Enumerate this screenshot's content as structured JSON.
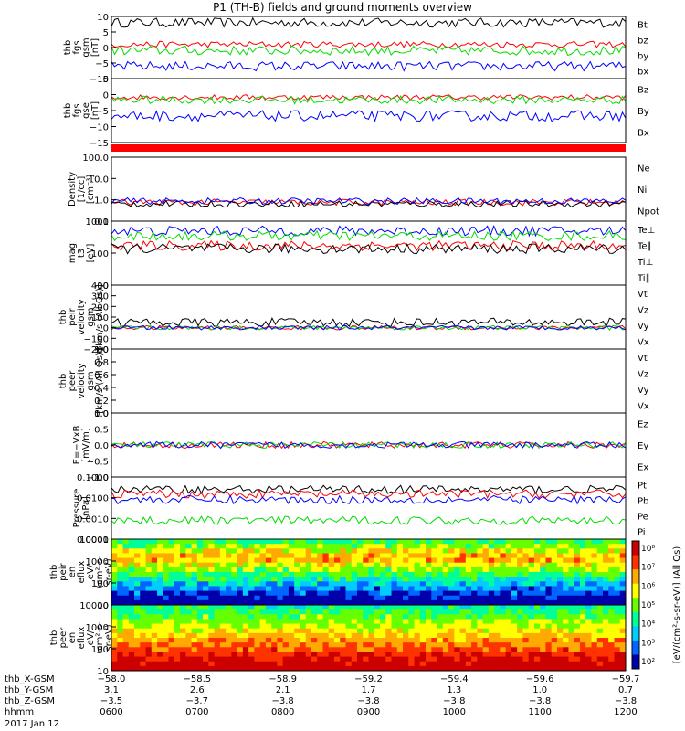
{
  "title": "P1 (TH-B) fields and ground moments overview",
  "date_label": "2017 Jan 12",
  "colors": {
    "black": "#000000",
    "red": "#ff0000",
    "green": "#00dd00",
    "blue": "#0000ff"
  },
  "chart_data": [
    {
      "type": "line",
      "id": "fgs",
      "ylabel": [
        "thb",
        "fgs",
        "gsm",
        "[nT]"
      ],
      "ylim": [
        -10,
        10
      ],
      "ticks": [
        "10",
        "5",
        "0",
        "−5",
        "−10"
      ],
      "series": [
        {
          "name": "Bt",
          "color": "black",
          "base": 8,
          "noise": 1.5
        },
        {
          "name": "bz",
          "color": "red",
          "base": 1,
          "noise": 1
        },
        {
          "name": "by",
          "color": "green",
          "base": -1,
          "noise": 1.5
        },
        {
          "name": "bx",
          "color": "blue",
          "base": -6,
          "noise": 1.5
        }
      ]
    },
    {
      "type": "line",
      "id": "fgs_gse",
      "ylabel": [
        "thb",
        "fgs",
        "gse",
        "[nT]"
      ],
      "ylim": [
        -17,
        7
      ],
      "ticks": [
        "5",
        "0",
        "−5",
        "−10",
        "−15"
      ],
      "series": [
        {
          "name": "Bz",
          "color": "red",
          "base": 0,
          "noise": 1
        },
        {
          "name": "By",
          "color": "green",
          "base": -1,
          "noise": 1.5
        },
        {
          "name": "Bx",
          "color": "blue",
          "base": -7,
          "noise": 2
        }
      ]
    },
    {
      "type": "line",
      "id": "density",
      "ylabel": [
        "Density",
        "[1/cc]",
        "[cm⁻³]"
      ],
      "ylim": [
        0.01,
        100
      ],
      "scale": "log",
      "ticks": [
        "100.0",
        "10.0",
        "1.0",
        "0.1"
      ],
      "series": [
        {
          "name": "Ne",
          "color": "red",
          "base": 0.15
        },
        {
          "name": "Ni",
          "color": "black",
          "base": 0.12
        },
        {
          "name": "Npot",
          "color": "blue",
          "base": 0.18
        }
      ]
    },
    {
      "type": "line",
      "id": "temperature",
      "ylabel": [
        "mag",
        "t3",
        "[eV]"
      ],
      "ylim": [
        5,
        2000
      ],
      "scale": "log",
      "ticks": [
        "1000",
        "100",
        "10"
      ],
      "series": [
        {
          "name": "Te⊥",
          "color": "red",
          "base": 200
        },
        {
          "name": "Te∥",
          "color": "black",
          "base": 150
        },
        {
          "name": "Ti⊥",
          "color": "blue",
          "base": 800
        },
        {
          "name": "Ti∥",
          "color": "green",
          "base": 500
        }
      ]
    },
    {
      "type": "line",
      "id": "peir_velocity",
      "ylabel": [
        "thb",
        "peir",
        "velocity",
        "gsm",
        "[km/s (All Qs)]"
      ],
      "ylim": [
        -200,
        400
      ],
      "ticks": [
        "400",
        "300",
        "200",
        "100",
        "0",
        "−100",
        "−200"
      ],
      "series": [
        {
          "name": "Vt",
          "color": "black",
          "base": 50,
          "noise": 40
        },
        {
          "name": "Vz",
          "color": "red",
          "base": 0,
          "noise": 20
        },
        {
          "name": "Vy",
          "color": "green",
          "base": 0,
          "noise": 20
        },
        {
          "name": "Vx",
          "color": "blue",
          "base": 0,
          "noise": 20
        }
      ]
    },
    {
      "type": "line",
      "id": "peer_velocity",
      "ylabel": [
        "thb",
        "peer",
        "velocity",
        "gsm",
        "[km/s (All Qs)]"
      ],
      "ylim": [
        0,
        1
      ],
      "ticks": [
        "1.0",
        "0.8",
        "0.6",
        "0.4",
        "0.2",
        "0.0"
      ],
      "series": [
        {
          "name": "Vt",
          "color": "black"
        },
        {
          "name": "Vz",
          "color": "red"
        },
        {
          "name": "Vy",
          "color": "green"
        },
        {
          "name": "Vx",
          "color": "blue"
        }
      ]
    },
    {
      "type": "line",
      "id": "efield",
      "ylabel": [
        "E=−VxB",
        "[mV/m]"
      ],
      "ylim": [
        -1,
        1
      ],
      "ticks": [
        "1.0",
        "0.5",
        "0.0",
        "−0.5",
        "−1.0"
      ],
      "series": [
        {
          "name": "Ez",
          "color": "red",
          "base": 0,
          "noise": 0.1
        },
        {
          "name": "Ey",
          "color": "green",
          "base": 0,
          "noise": 0.1
        },
        {
          "name": "Ex",
          "color": "blue",
          "base": 0,
          "noise": 0.1
        }
      ]
    },
    {
      "type": "line",
      "id": "pressure",
      "ylabel": [
        "Pressure",
        "[nPa]"
      ],
      "ylim": [
        0.0001,
        0.1
      ],
      "scale": "log",
      "ticks": [
        "0.1000",
        "0.0100",
        "0.0010",
        "0.0001"
      ],
      "series": [
        {
          "name": "Pt",
          "color": "black",
          "base": 0.025
        },
        {
          "name": "Pb",
          "color": "red",
          "base": 0.015
        },
        {
          "name": "Pe",
          "color": "green",
          "base": 0.0008
        },
        {
          "name": "Pi",
          "color": "blue",
          "base": 0.008
        }
      ]
    },
    {
      "type": "heatmap",
      "id": "peir_spec",
      "ylabel": [
        "thb",
        "peir",
        "en",
        "eflux",
        "eV/",
        "(cm²-s-",
        "sr-eV)"
      ],
      "ylim": [
        5,
        30000
      ],
      "scale": "log",
      "ticks": [
        "10000",
        "1000",
        "100",
        "10"
      ]
    },
    {
      "type": "heatmap",
      "id": "peer_spec",
      "ylabel": [
        "thb",
        "peer",
        "en",
        "eflux",
        "eV/",
        "(cm²-s-",
        "sr-eV)"
      ],
      "ylim": [
        5,
        30000
      ],
      "scale": "log",
      "ticks": [
        "10000",
        "1000",
        "100",
        "10"
      ]
    }
  ],
  "colorbar": {
    "ticks": [
      "10⁸",
      "10⁷",
      "10⁶",
      "10⁵",
      "10⁴",
      "10³",
      "10²"
    ],
    "label": "[eV/(cm²-s-sr-eV)] (All Qs)"
  },
  "x_axis": {
    "rows": [
      {
        "label": "thb_X-GSM",
        "values": [
          "−58.0",
          "−58.5",
          "−58.9",
          "−59.2",
          "−59.4",
          "−59.6",
          "−59.7"
        ]
      },
      {
        "label": "thb_Y-GSM",
        "values": [
          "3.1",
          "2.6",
          "2.1",
          "1.7",
          "1.3",
          "1.0",
          "0.7"
        ]
      },
      {
        "label": "thb_Z-GSM",
        "values": [
          "−3.5",
          "−3.7",
          "−3.8",
          "−3.8",
          "−3.8",
          "−3.8",
          "−3.8"
        ]
      },
      {
        "label": "hhmm",
        "values": [
          "0600",
          "0700",
          "0800",
          "0900",
          "1000",
          "1100",
          "1200"
        ]
      }
    ]
  }
}
